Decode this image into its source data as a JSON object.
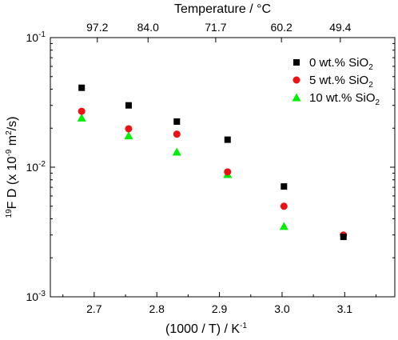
{
  "chart_data": {
    "type": "scatter",
    "xlabel": "(1000 / T) / K",
    "xlabel_sup": "-1",
    "ylabel_prefix_sup": "19",
    "ylabel_main": "F D (x 10",
    "ylabel_sup1": "-9",
    "ylabel_mid": " m",
    "ylabel_sup2": "2",
    "ylabel_end": "/s)",
    "top_xlabel": "Temperature / °C",
    "xlim": [
      2.63,
      3.18
    ],
    "ylim": [
      0.001,
      0.1
    ],
    "yscale": "log",
    "x_ticks": [
      2.7,
      2.8,
      2.9,
      3.0,
      3.1
    ],
    "x_tick_labels": [
      "2.7",
      "2.8",
      "2.9",
      "3.0",
      "3.1"
    ],
    "y_ticks": [
      0.001,
      0.01,
      0.1
    ],
    "y_tick_labels": [
      {
        "base": "10",
        "exp": "-3"
      },
      {
        "base": "10",
        "exp": "-2"
      },
      {
        "base": "10",
        "exp": "-1"
      }
    ],
    "top_ticks_x": [
      2.705,
      2.786,
      2.894,
      2.999,
      3.093
    ],
    "top_tick_labels": [
      "97.2",
      "84.0",
      "71.7",
      "60.2",
      "49.4"
    ],
    "legend_position": "top-right",
    "grid": false,
    "series": [
      {
        "name_main": "0 wt.% SiO",
        "name_sub": "2",
        "marker": "square",
        "color": "#000000",
        "x": [
          2.68,
          2.755,
          2.832,
          2.913,
          3.003,
          3.098
        ],
        "y": [
          0.041,
          0.03,
          0.0225,
          0.0163,
          0.0071,
          0.0029
        ]
      },
      {
        "name_main": "5 wt.% SiO",
        "name_sub": "2",
        "marker": "circle",
        "color": "#ee1111",
        "x": [
          2.68,
          2.755,
          2.832,
          2.913,
          3.003,
          3.098
        ],
        "y": [
          0.027,
          0.0198,
          0.018,
          0.0092,
          0.005,
          0.003
        ]
      },
      {
        "name_main": "10 wt.% SiO",
        "name_sub": "2",
        "marker": "triangle",
        "color": "#00ee00",
        "x": [
          2.68,
          2.755,
          2.832,
          2.913,
          3.003
        ],
        "y": [
          0.024,
          0.0175,
          0.0131,
          0.0088,
          0.0035
        ]
      }
    ]
  }
}
